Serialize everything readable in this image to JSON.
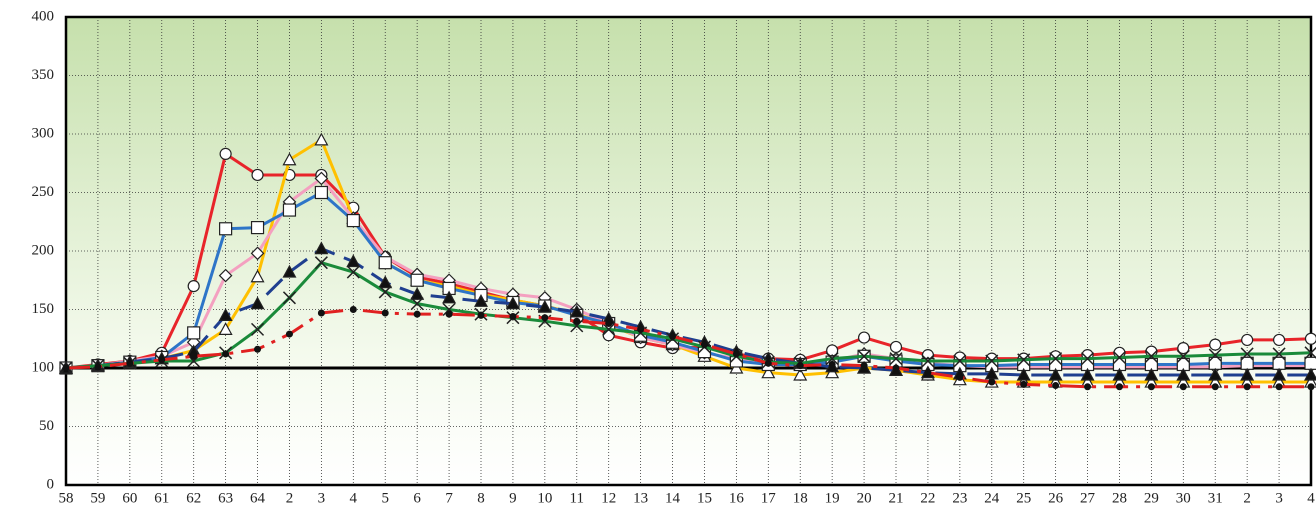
{
  "chart_data": {
    "type": "line",
    "categories": [
      "58",
      "59",
      "60",
      "61",
      "62",
      "63",
      "64",
      "2",
      "3",
      "4",
      "5",
      "6",
      "7",
      "8",
      "9",
      "10",
      "11",
      "12",
      "13",
      "14",
      "15",
      "16",
      "17",
      "18",
      "19",
      "20",
      "21",
      "22",
      "23",
      "24",
      "25",
      "26",
      "27",
      "28",
      "29",
      "30",
      "31",
      "2",
      "3",
      "4"
    ],
    "ylim": [
      0,
      400
    ],
    "yticks": [
      0,
      50,
      100,
      150,
      200,
      250,
      300,
      350,
      400
    ],
    "grid": true,
    "baseline": 100,
    "series": [
      {
        "color": "#e8242a",
        "marker": "circle",
        "dash": "",
        "values": [
          100,
          103,
          106,
          113,
          170,
          283,
          265,
          265,
          265,
          237,
          195,
          178,
          172,
          165,
          158,
          153,
          146,
          128,
          122,
          117,
          118,
          112,
          108,
          107,
          115,
          126,
          118,
          111,
          109,
          108,
          108,
          110,
          111,
          113,
          114,
          117,
          120,
          124,
          124,
          125
        ]
      },
      {
        "color": "#ffc000",
        "marker": "triangle",
        "dash": "",
        "values": [
          100,
          102,
          105,
          108,
          115,
          133,
          178,
          278,
          295,
          228,
          190,
          175,
          170,
          163,
          158,
          153,
          146,
          137,
          126,
          120,
          110,
          100,
          96,
          94,
          96,
          100,
          98,
          94,
          90,
          88,
          88,
          88,
          88,
          88,
          88,
          88,
          88,
          88,
          88,
          88
        ]
      },
      {
        "color": "#f4a0c0",
        "marker": "diamond",
        "dash": "",
        "values": [
          100,
          102,
          106,
          110,
          122,
          179,
          198,
          242,
          262,
          228,
          195,
          180,
          175,
          168,
          163,
          160,
          150,
          138,
          126,
          120,
          113,
          108,
          104,
          102,
          106,
          112,
          108,
          104,
          102,
          101,
          101,
          101,
          101,
          101,
          101,
          101,
          101,
          102,
          102,
          102
        ]
      },
      {
        "color": "#2e75c8",
        "marker": "square",
        "dash": "",
        "values": [
          100,
          102,
          105,
          109,
          130,
          219,
          220,
          235,
          250,
          226,
          190,
          175,
          168,
          162,
          156,
          153,
          145,
          138,
          128,
          122,
          114,
          106,
          103,
          103,
          105,
          110,
          106,
          103,
          102,
          102,
          103,
          103,
          103,
          103,
          103,
          103,
          104,
          104,
          104,
          104
        ]
      },
      {
        "color": "#1f3f8f",
        "marker": "filled-triangle",
        "dash": "22 10",
        "values": [
          100,
          102,
          105,
          108,
          114,
          145,
          155,
          182,
          202,
          191,
          173,
          163,
          160,
          157,
          155,
          152,
          148,
          142,
          135,
          128,
          122,
          114,
          108,
          104,
          101,
          100,
          98,
          96,
          95,
          95,
          94,
          94,
          94,
          94,
          94,
          94,
          94,
          94,
          94,
          94
        ]
      },
      {
        "color": "#1a8a3a",
        "marker": "cross",
        "dash": "",
        "values": [
          100,
          102,
          104,
          106,
          106,
          113,
          133,
          160,
          190,
          182,
          165,
          155,
          150,
          146,
          143,
          140,
          136,
          133,
          130,
          125,
          118,
          110,
          105,
          104,
          108,
          110,
          108,
          106,
          106,
          106,
          107,
          108,
          108,
          109,
          110,
          110,
          111,
          112,
          112,
          113
        ]
      },
      {
        "color": "#e02020",
        "marker": "dot",
        "dash": "24 8 4 8",
        "values": [
          100,
          101,
          104,
          107,
          110,
          112,
          116,
          129,
          147,
          150,
          147,
          146,
          146,
          145,
          144,
          143,
          140,
          138,
          133,
          127,
          120,
          112,
          104,
          102,
          103,
          102,
          100,
          96,
          92,
          88,
          86,
          85,
          84,
          84,
          84,
          84,
          84,
          84,
          84,
          84
        ]
      }
    ]
  }
}
